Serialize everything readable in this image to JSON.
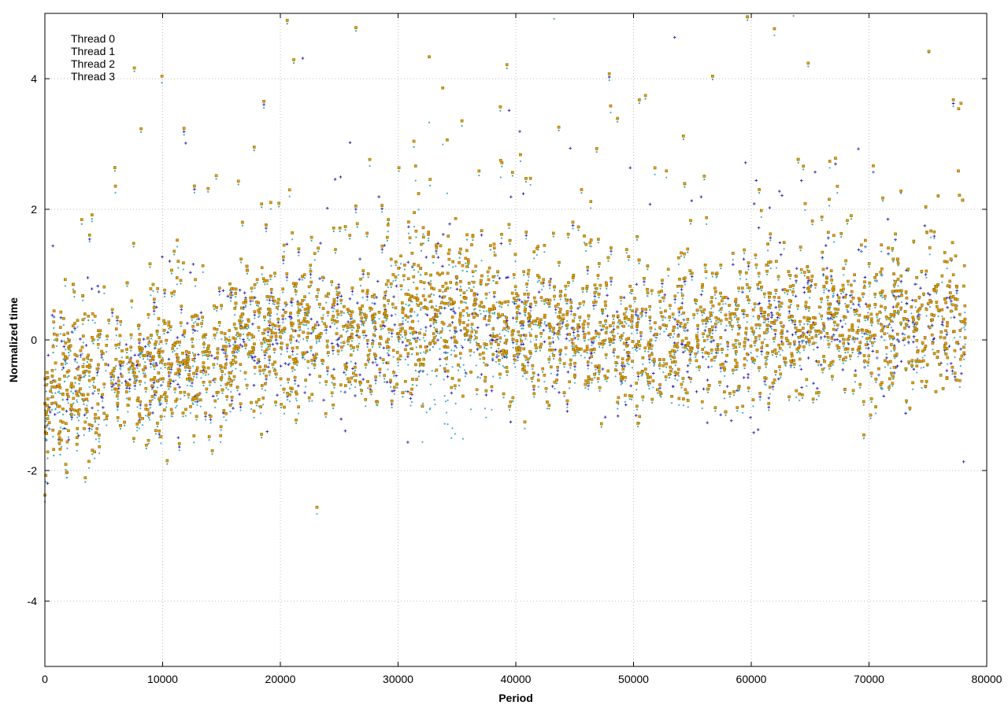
{
  "chart_data": {
    "type": "scatter",
    "title": "",
    "xlabel": "Period",
    "ylabel": "Normalized time",
    "xlim": [
      0,
      80000
    ],
    "ylim": [
      -5,
      5
    ],
    "xticks": [
      0,
      10000,
      20000,
      30000,
      40000,
      50000,
      60000,
      70000,
      80000
    ],
    "yticks": [
      -4,
      -2,
      0,
      2,
      4
    ],
    "grid": true,
    "legend_position": "top-left",
    "x_extent": [
      0,
      78200
    ],
    "series": [
      {
        "name": "Thread 0",
        "color": "#2e1fa8",
        "marker": "plus",
        "trend": [
          [
            0,
            -1.1
          ],
          [
            5000,
            -0.6
          ],
          [
            10000,
            -0.45
          ],
          [
            15000,
            -0.35
          ],
          [
            16500,
            0.05
          ],
          [
            30000,
            0.0
          ],
          [
            31800,
            0.35
          ],
          [
            40000,
            0.1
          ],
          [
            50000,
            -0.05
          ],
          [
            60000,
            0.05
          ],
          [
            70000,
            0.15
          ],
          [
            78200,
            0.15
          ]
        ]
      },
      {
        "name": "Thread 1",
        "color": "#3aa89a",
        "marker": "dot",
        "trend": [
          [
            0,
            -1.1
          ],
          [
            5000,
            -0.6
          ],
          [
            10000,
            -0.45
          ],
          [
            15000,
            -0.35
          ],
          [
            16500,
            0.05
          ],
          [
            30000,
            0.0
          ],
          [
            31800,
            0.35
          ],
          [
            40000,
            0.1
          ],
          [
            50000,
            -0.05
          ],
          [
            60000,
            0.05
          ],
          [
            70000,
            0.2
          ],
          [
            78200,
            0.2
          ]
        ]
      },
      {
        "name": "Thread 2",
        "color": "#4fa9cf",
        "marker": "dot",
        "trend": [
          [
            0,
            -1.1
          ],
          [
            5000,
            -0.65
          ],
          [
            10000,
            -0.5
          ],
          [
            15000,
            -0.4
          ],
          [
            16500,
            0.0
          ],
          [
            30000,
            -0.05
          ],
          [
            31800,
            0.2
          ],
          [
            32500,
            -0.6
          ],
          [
            40000,
            0.05
          ],
          [
            50000,
            -0.1
          ],
          [
            60000,
            0.0
          ],
          [
            70000,
            0.15
          ],
          [
            78200,
            0.1
          ]
        ]
      },
      {
        "name": "Thread 3",
        "color": "#e19e00",
        "marker": "square",
        "trend": [
          [
            0,
            -1.0
          ],
          [
            5000,
            -0.55
          ],
          [
            10000,
            -0.4
          ],
          [
            15000,
            -0.3
          ],
          [
            16500,
            0.1
          ],
          [
            30000,
            0.05
          ],
          [
            31800,
            0.45
          ],
          [
            40000,
            0.15
          ],
          [
            50000,
            0.0
          ],
          [
            60000,
            0.1
          ],
          [
            70000,
            0.25
          ],
          [
            78200,
            0.2
          ]
        ]
      }
    ]
  }
}
